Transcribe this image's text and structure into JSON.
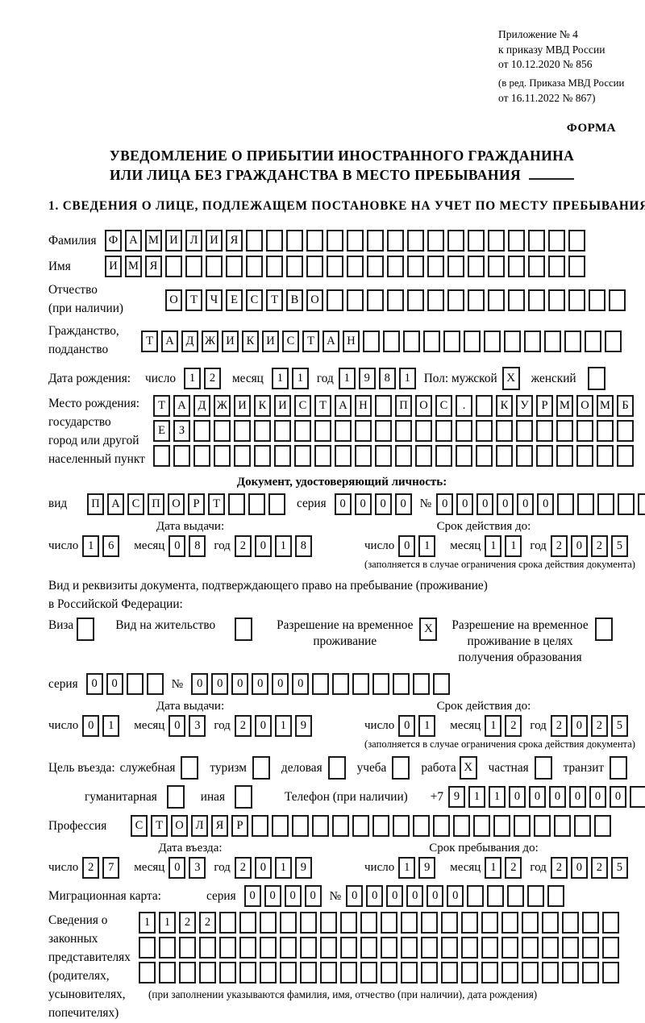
{
  "header": {
    "line1": "Приложение № 4",
    "line2": "к приказу МВД России",
    "line3": "от 10.12.2020 № 856",
    "line4": "(в ред. Приказа МВД России",
    "line5": "от 16.11.2022 № 867)",
    "form_label": "ФОРМА"
  },
  "title": {
    "line1": "УВЕДОМЛЕНИЕ О ПРИБЫТИИ ИНОСТРАННОГО ГРАЖДАНИНА",
    "line2": "ИЛИ ЛИЦА БЕЗ ГРАЖДАНСТВА В МЕСТО ПРЕБЫВАНИЯ"
  },
  "section1_heading": "1. СВЕДЕНИЯ О ЛИЦЕ, ПОДЛЕЖАЩЕМ ПОСТАНОВКЕ НА УЧЕТ ПО МЕСТУ ПРЕБЫВАНИЯ",
  "surname": {
    "label": "Фамилия",
    "row": {
      "v": "ФАМИЛИЯ",
      "n": 24
    }
  },
  "firstname": {
    "label": "Имя",
    "row": {
      "v": "ИМЯ",
      "n": 24
    }
  },
  "patronymic": {
    "label1": "Отчество",
    "label2": "(при наличии)",
    "row": {
      "v": "ОТЧЕСТВО",
      "n": 23
    }
  },
  "citizenship": {
    "label1": "Гражданство,",
    "label2": "подданство",
    "row": {
      "v": "ТАДЖИКИСТАН",
      "n": 24
    }
  },
  "birth_date": {
    "label": "Дата рождения:",
    "day_label": "число",
    "day": {
      "v": "12",
      "n": 2
    },
    "month_label": "месяц",
    "month": {
      "v": "11",
      "n": 2
    },
    "year_label": "год",
    "year": {
      "v": "1981",
      "n": 4
    },
    "sex_label": "Пол: мужской",
    "male_mark": "X",
    "female_label": "женский",
    "female_mark": ""
  },
  "birth_place": {
    "label1": "Место рождения:",
    "label2": "государство",
    "label3": "город или другой",
    "label4": "населенный пункт",
    "row1": {
      "v": "ТАДЖИКИСТАН ПОС. КУРМОМБ",
      "n": 24
    },
    "row2": {
      "v": "ЕЗ",
      "n": 24
    },
    "row3": {
      "v": "",
      "n": 24
    }
  },
  "identity_doc": {
    "heading": "Документ, удостоверяющий личность:",
    "kind_label": "вид",
    "kind": {
      "v": "ПАСПОРТ",
      "n": 10
    },
    "series_label": "серия",
    "series": {
      "v": "0000",
      "n": 4
    },
    "number_label": "№",
    "number": {
      "v": "000000",
      "n": 11
    },
    "issue_heading": "Дата выдачи:",
    "expiry_heading": "Срок действия до:",
    "day_label": "число",
    "month_label": "месяц",
    "year_label": "год",
    "issue_day": {
      "v": "16",
      "n": 2
    },
    "issue_month": {
      "v": "08",
      "n": 2
    },
    "issue_year": {
      "v": "2018",
      "n": 4
    },
    "expiry_day": {
      "v": "01",
      "n": 2
    },
    "expiry_month": {
      "v": "11",
      "n": 2
    },
    "expiry_year": {
      "v": "2025",
      "n": 4
    },
    "expiry_note": "(заполняется в случае ограничения срока действия документа)"
  },
  "residence_doc": {
    "intro1": "Вид и реквизиты документа, подтверждающего право на пребывание (проживание)",
    "intro2": "в Российской Федерации:",
    "visa_label": "Виза",
    "visa_mark": "",
    "rp_label": "Вид на жительство",
    "rp_mark": "",
    "trp_label1": "Разрешение на временное",
    "trp_label2": "проживание",
    "trp_mark": "X",
    "edu_label1": "Разрешение на временное",
    "edu_label2": "проживание в целях",
    "edu_label3": "получения образования",
    "edu_mark": "",
    "series_label": "серия",
    "series": {
      "v": "00",
      "n": 4
    },
    "number_label": "№",
    "number": {
      "v": "000000",
      "n": 13
    },
    "issue_heading": "Дата выдачи:",
    "expiry_heading": "Срок действия до:",
    "day_label": "число",
    "month_label": "месяц",
    "year_label": "год",
    "issue_day": {
      "v": "01",
      "n": 2
    },
    "issue_month": {
      "v": "03",
      "n": 2
    },
    "issue_year": {
      "v": "2019",
      "n": 4
    },
    "expiry_day": {
      "v": "01",
      "n": 2
    },
    "expiry_month": {
      "v": "12",
      "n": 2
    },
    "expiry_year": {
      "v": "2025",
      "n": 4
    },
    "expiry_note": "(заполняется в случае ограничения срока действия документа)"
  },
  "purpose": {
    "label": "Цель въезда:",
    "options": [
      {
        "label": "служебная",
        "mark": ""
      },
      {
        "label": "туризм",
        "mark": ""
      },
      {
        "label": "деловая",
        "mark": ""
      },
      {
        "label": "учеба",
        "mark": ""
      },
      {
        "label": "работа",
        "mark": "X"
      },
      {
        "label": "частная",
        "mark": ""
      },
      {
        "label": "транзит",
        "mark": ""
      },
      {
        "label": "гуманитарная",
        "mark": ""
      },
      {
        "label": "иная",
        "mark": ""
      }
    ],
    "phone_label": "Телефон (при наличии)",
    "phone_prefix": "+7",
    "phone": {
      "v": "911000000",
      "n": 10
    }
  },
  "profession": {
    "label": "Профессия",
    "row": {
      "v": "СТОЛЯР",
      "n": 24
    }
  },
  "entry": {
    "entry_heading": "Дата въезда:",
    "stay_heading": "Срок пребывания до:",
    "day_label": "число",
    "month_label": "месяц",
    "year_label": "год",
    "entry_day": {
      "v": "27",
      "n": 2
    },
    "entry_month": {
      "v": "03",
      "n": 2
    },
    "entry_year": {
      "v": "2019",
      "n": 4
    },
    "stay_day": {
      "v": "19",
      "n": 2
    },
    "stay_month": {
      "v": "12",
      "n": 2
    },
    "stay_year": {
      "v": "2025",
      "n": 4
    }
  },
  "migration_card": {
    "label": "Миграционная карта:",
    "series_label": "серия",
    "series": {
      "v": "0000",
      "n": 4
    },
    "number_label": "№",
    "number": {
      "v": "000000",
      "n": 11
    }
  },
  "legal_reps": {
    "label1": "Сведения о",
    "label2": "законных",
    "label3": "представителях",
    "label4": "(родителях,",
    "label5": "усыновителях,",
    "label6": "попечителях)",
    "row1": {
      "v": "1122",
      "n": 24
    },
    "row2": {
      "v": "",
      "n": 24
    },
    "row3": {
      "v": "",
      "n": 24
    },
    "note": "(при заполнении указываются фамилия, имя, отчество (при наличии), дата рождения)"
  }
}
